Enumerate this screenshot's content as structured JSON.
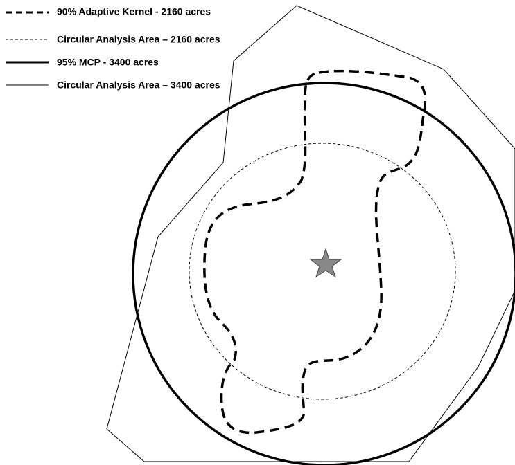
{
  "legend": {
    "items": [
      {
        "label": "90% Adaptive Kernel  - 2160 acres"
      },
      {
        "label": "Circular Analysis Area – 2160 acres"
      },
      {
        "label": "95% MCP -  3400 acres"
      },
      {
        "label": "Circular Analysis Area – 3400 acres"
      }
    ]
  }
}
